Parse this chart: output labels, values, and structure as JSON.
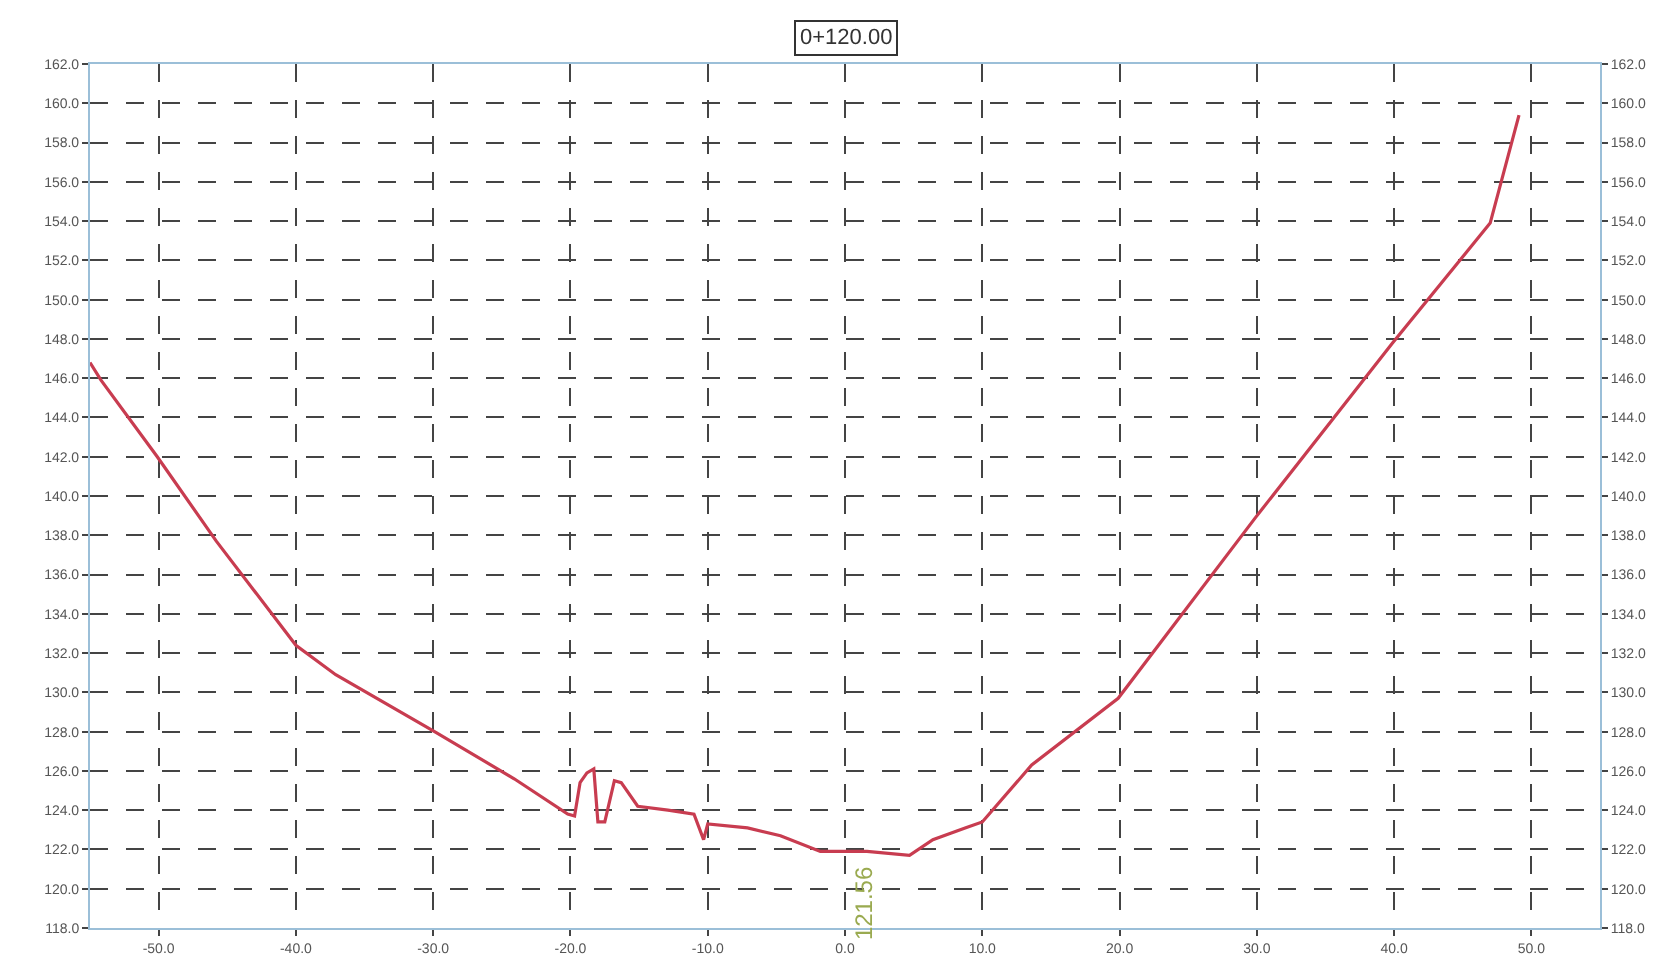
{
  "chart_data": {
    "type": "line",
    "title": "0+120.00",
    "x": [
      -55,
      -54.2,
      -50.1,
      -45.8,
      -40,
      -37.1,
      -29.9,
      -24.1,
      -20.2,
      -19.7,
      -19.3,
      -18.8,
      -18.3,
      -18.0,
      -17.5,
      -16.8,
      -16.3,
      -15.1,
      -12.9,
      -11.0,
      -10.3,
      -10.0,
      -7.1,
      -4.7,
      -1.8,
      1.6,
      4.7,
      6.4,
      8.8,
      10.0,
      13.6,
      19.9,
      29.9,
      39.9,
      47.0,
      49.1
    ],
    "series": [
      {
        "color": "#c83c50",
        "values": [
          146.8,
          145.9,
          142.0,
          137.7,
          132.4,
          130.9,
          128.0,
          125.6,
          123.8,
          123.7,
          125.4,
          125.9,
          126.1,
          123.4,
          123.4,
          125.5,
          125.4,
          124.2,
          124.0,
          123.8,
          122.5,
          123.3,
          123.1,
          122.7,
          121.9,
          121.9,
          121.7,
          122.5,
          123.1,
          123.4,
          126.3,
          129.7,
          138.9,
          147.8,
          153.9,
          159.4
        ]
      }
    ],
    "xlim": [
      -55,
      55
    ],
    "xticks": [
      {
        "value": -50,
        "label": "-50.0"
      },
      {
        "value": -40,
        "label": "-40.0"
      },
      {
        "value": -30,
        "label": "-30.0"
      },
      {
        "value": -20,
        "label": "-20.0"
      },
      {
        "value": -10,
        "label": "-10.0"
      },
      {
        "value": 0,
        "label": "0.0"
      },
      {
        "value": 10,
        "label": "10.0"
      },
      {
        "value": 20,
        "label": "20.0"
      },
      {
        "value": 30,
        "label": "30.0"
      },
      {
        "value": 40,
        "label": "40.0"
      },
      {
        "value": 50,
        "label": "50.0"
      }
    ],
    "ylim": [
      118,
      162
    ],
    "yticks": [
      {
        "value": 118,
        "label": "118.0"
      },
      {
        "value": 120,
        "label": "120.0"
      },
      {
        "value": 122,
        "label": "122.0"
      },
      {
        "value": 124,
        "label": "124.0"
      },
      {
        "value": 126,
        "label": "126.0"
      },
      {
        "value": 128,
        "label": "128.0"
      },
      {
        "value": 130,
        "label": "130.0"
      },
      {
        "value": 132,
        "label": "132.0"
      },
      {
        "value": 134,
        "label": "134.0"
      },
      {
        "value": 136,
        "label": "136.0"
      },
      {
        "value": 138,
        "label": "138.0"
      },
      {
        "value": 140,
        "label": "140.0"
      },
      {
        "value": 142,
        "label": "142.0"
      },
      {
        "value": 144,
        "label": "144.0"
      },
      {
        "value": 146,
        "label": "146.0"
      },
      {
        "value": 148,
        "label": "148.0"
      },
      {
        "value": 150,
        "label": "150.0"
      },
      {
        "value": 152,
        "label": "152.0"
      },
      {
        "value": 154,
        "label": "154.0"
      },
      {
        "value": 156,
        "label": "156.0"
      },
      {
        "value": 158,
        "label": "158.0"
      },
      {
        "value": 160,
        "label": "160.0"
      },
      {
        "value": 162,
        "label": "162.0"
      }
    ],
    "y2lim": [
      118,
      162
    ],
    "y2ticks": [
      {
        "value": 118,
        "label": "118.0"
      },
      {
        "value": 120,
        "label": "120.0"
      },
      {
        "value": 122,
        "label": "122.0"
      },
      {
        "value": 124,
        "label": "124.0"
      },
      {
        "value": 126,
        "label": "126.0"
      },
      {
        "value": 128,
        "label": "128.0"
      },
      {
        "value": 130,
        "label": "130.0"
      },
      {
        "value": 132,
        "label": "132.0"
      },
      {
        "value": 134,
        "label": "134.0"
      },
      {
        "value": 136,
        "label": "136.0"
      },
      {
        "value": 138,
        "label": "138.0"
      },
      {
        "value": 140,
        "label": "140.0"
      },
      {
        "value": 142,
        "label": "142.0"
      },
      {
        "value": 144,
        "label": "144.0"
      },
      {
        "value": 146,
        "label": "146.0"
      },
      {
        "value": 148,
        "label": "148.0"
      },
      {
        "value": 150,
        "label": "150.0"
      },
      {
        "value": 152,
        "label": "152.0"
      },
      {
        "value": 154,
        "label": "154.0"
      },
      {
        "value": 156,
        "label": "156.0"
      },
      {
        "value": 158,
        "label": "158.0"
      },
      {
        "value": 160,
        "label": "160.0"
      },
      {
        "value": 162,
        "label": "162.0"
      }
    ],
    "annotations": [
      {
        "text": "121.56",
        "x": 0,
        "y": 121.56
      }
    ],
    "grid": true,
    "marker": "none",
    "line_style": "solid"
  }
}
